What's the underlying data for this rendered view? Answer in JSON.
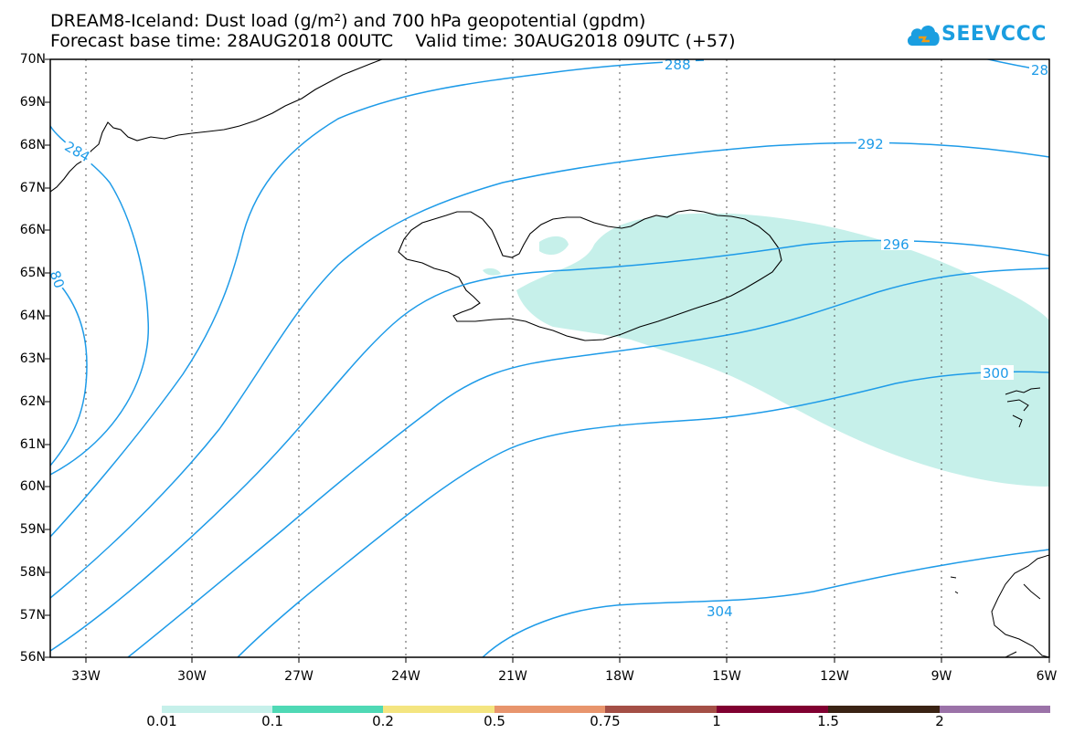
{
  "header": {
    "title_line1": "DREAM8-Iceland: Dust load (g/m²) and 700 hPa geopotential (gpdm)",
    "title_line2": "Forecast base time: 28AUG2018 00UTC    Valid time: 30AUG2018 09UTC (+57)"
  },
  "logo": {
    "text": "SEEVCCC",
    "icon": "cloud-icon"
  },
  "map": {
    "lat_labels": [
      "70N",
      "69N",
      "68N",
      "67N",
      "66N",
      "65N",
      "64N",
      "63N",
      "62N",
      "61N",
      "60N",
      "59N",
      "58N",
      "57N",
      "56N"
    ],
    "lon_labels": [
      "33W",
      "30W",
      "27W",
      "24W",
      "21W",
      "18W",
      "15W",
      "12W",
      "9W",
      "6W"
    ],
    "contour_labels": [
      "284",
      "288",
      "28",
      "292",
      "296",
      "300",
      "304",
      "80"
    ],
    "contour_color": "#1e9be8",
    "dust_color": "#c6f0ea"
  },
  "colorbar": {
    "labels": [
      "0.01",
      "0.1",
      "0.2",
      "0.5",
      "0.75",
      "1",
      "1.5",
      "2"
    ],
    "colors": [
      "#c6f0ea",
      "#4fd9b5",
      "#f4e580",
      "#e8956d",
      "#a44f46",
      "#800031",
      "#3a2314",
      "#9b72a8"
    ]
  }
}
